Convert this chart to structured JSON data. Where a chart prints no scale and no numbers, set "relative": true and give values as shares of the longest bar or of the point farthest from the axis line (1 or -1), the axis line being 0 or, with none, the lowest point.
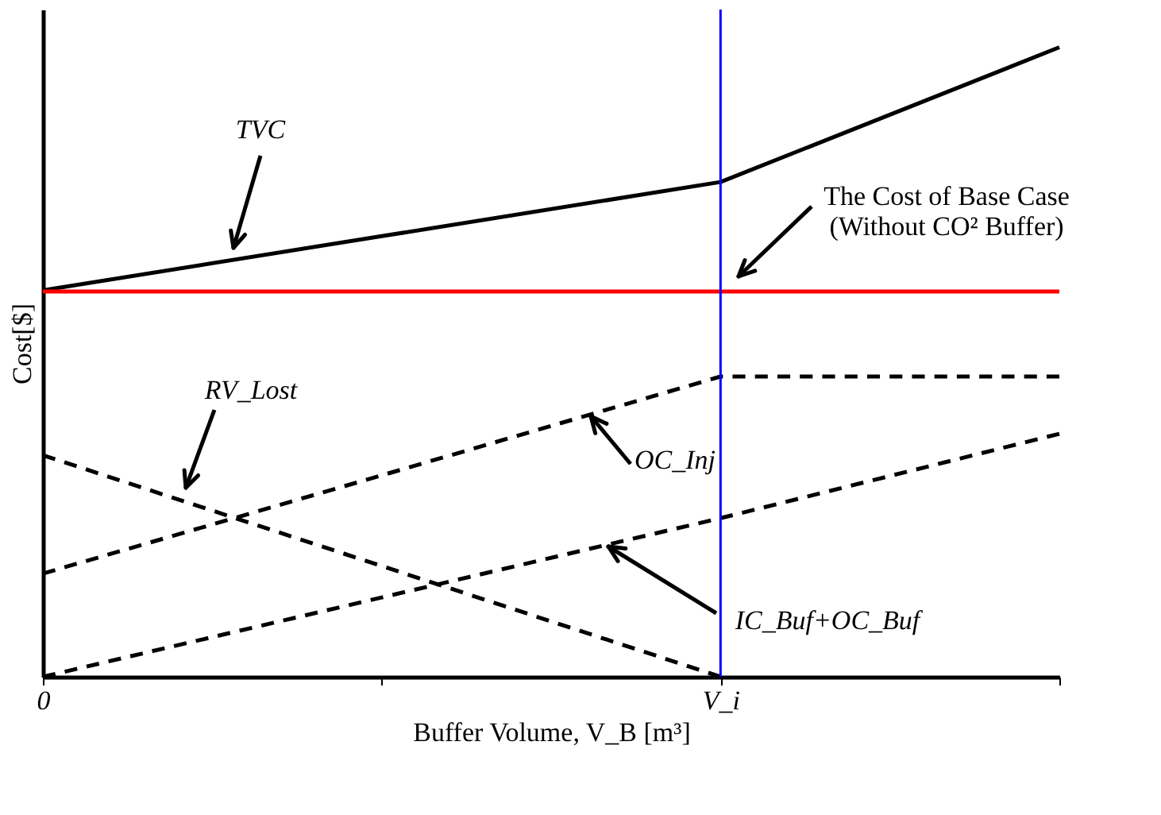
{
  "chart_data": {
    "type": "line",
    "relative": true,
    "xlabel": "Buffer Volume, V_B [m³]",
    "ylabel": "Cost[$]",
    "categories": [
      "0",
      null,
      "V_i",
      null
    ],
    "grid": false,
    "series": [
      {
        "color": "#000000",
        "line_style": "solid",
        "values": [
          0.614,
          0.7,
          0.786,
          1
        ]
      },
      {
        "color": "#ff0000",
        "line_style": "solid",
        "values": [
          0.612,
          0.612,
          0.612,
          0.612
        ]
      },
      {
        "color": "#000000",
        "line_style": "dashed",
        "values": [
          0.352,
          0.176,
          0,
          null
        ]
      },
      {
        "color": "#000000",
        "line_style": "dashed",
        "values": [
          0.164,
          0.32,
          0.477,
          0.477
        ]
      },
      {
        "color": "#000000",
        "line_style": "dashed",
        "values": [
          0,
          0.126,
          0.252,
          0.386
        ]
      }
    ],
    "ref_lines": [
      {
        "axis": "x",
        "value": "V_i",
        "color": "#0000ff"
      }
    ],
    "annotations": [
      "TVC",
      "The Cost of Base Case\n(Without CO² Buffer)",
      "RV_Lost",
      "OC_Inj",
      "IC_Buf+OC_Buf"
    ]
  }
}
